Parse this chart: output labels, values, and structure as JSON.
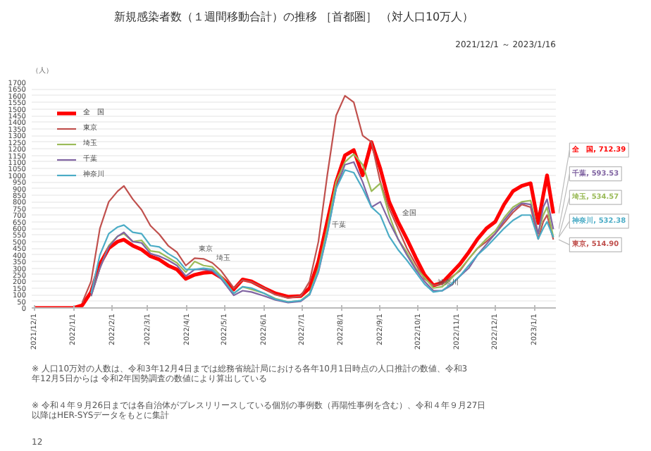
{
  "chart_data": {
    "type": "line",
    "title": "新規感染者数（１週間移動合計）の推移 ［首都圏］ （対人口10万人）",
    "subtitle": "2021/12/1 ～ 2023/1/16",
    "ylabel": "（人）",
    "x": [
      "2021-12-01",
      "2021-12-20",
      "2022-01-01",
      "2022-01-08",
      "2022-01-15",
      "2022-01-22",
      "2022-01-29",
      "2022-02-05",
      "2022-02-10",
      "2022-02-17",
      "2022-02-24",
      "2022-03-03",
      "2022-03-10",
      "2022-03-17",
      "2022-03-24",
      "2022-03-31",
      "2022-04-07",
      "2022-04-14",
      "2022-04-21",
      "2022-04-28",
      "2022-05-08",
      "2022-05-15",
      "2022-05-22",
      "2022-06-01",
      "2022-06-10",
      "2022-06-20",
      "2022-06-30",
      "2022-07-07",
      "2022-07-14",
      "2022-07-21",
      "2022-07-28",
      "2022-08-04",
      "2022-08-11",
      "2022-08-18",
      "2022-08-25",
      "2022-09-01",
      "2022-09-08",
      "2022-09-15",
      "2022-09-22",
      "2022-09-29",
      "2022-10-06",
      "2022-10-13",
      "2022-10-20",
      "2022-10-27",
      "2022-11-03",
      "2022-11-10",
      "2022-11-17",
      "2022-11-24",
      "2022-12-01",
      "2022-12-08",
      "2022-12-15",
      "2022-12-22",
      "2022-12-29",
      "2023-01-04",
      "2023-01-08",
      "2023-01-11",
      "2023-01-16"
    ],
    "series": [
      {
        "name": "全　国",
        "color": "#ff0000",
        "values": [
          0,
          0,
          0,
          20,
          120,
          330,
          450,
          500,
          515,
          470,
          440,
          390,
          365,
          320,
          290,
          220,
          250,
          265,
          270,
          230,
          140,
          215,
          200,
          150,
          110,
          85,
          90,
          150,
          350,
          650,
          950,
          1150,
          1190,
          1000,
          1250,
          1050,
          800,
          650,
          520,
          380,
          250,
          170,
          190,
          260,
          330,
          420,
          520,
          600,
          650,
          780,
          880,
          920,
          940,
          640,
          850,
          1000,
          712.39
        ],
        "value_labels": [
          null,
          null,
          null,
          null,
          null,
          null,
          null,
          null,
          null,
          null,
          null,
          null,
          null,
          null,
          null,
          null,
          null,
          null,
          null,
          null,
          null,
          null,
          null,
          null,
          null,
          null,
          null,
          null,
          null,
          null,
          null,
          null,
          null,
          null,
          null,
          null,
          null,
          null,
          null,
          null,
          null,
          null,
          null,
          null,
          null,
          null,
          null,
          null,
          null,
          null,
          null,
          null,
          null,
          null,
          null,
          null,
          "全　国, 712.39"
        ]
      },
      {
        "name": "東京",
        "color": "#c0504d",
        "values": [
          null,
          null,
          null,
          40,
          200,
          600,
          800,
          880,
          920,
          820,
          740,
          620,
          555,
          470,
          420,
          320,
          375,
          370,
          340,
          280,
          150,
          210,
          195,
          150,
          100,
          75,
          90,
          200,
          500,
          1000,
          1450,
          1600,
          1550,
          1300,
          1250,
          950,
          750,
          600,
          450,
          330,
          220,
          170,
          180,
          230,
          280,
          370,
          450,
          500,
          560,
          640,
          720,
          780,
          760,
          520,
          650,
          700,
          514.9
        ],
        "value_labels": [
          null,
          null,
          null,
          null,
          null,
          null,
          null,
          null,
          null,
          null,
          null,
          null,
          null,
          null,
          null,
          null,
          null,
          null,
          null,
          null,
          null,
          null,
          null,
          null,
          null,
          null,
          null,
          null,
          null,
          null,
          null,
          null,
          null,
          null,
          null,
          null,
          null,
          null,
          null,
          null,
          null,
          null,
          null,
          null,
          null,
          null,
          null,
          null,
          null,
          null,
          null,
          null,
          null,
          null,
          null,
          null,
          "東京, 514.90"
        ]
      },
      {
        "name": "埼玉",
        "color": "#9bbb59",
        "values": [
          null,
          null,
          null,
          null,
          90,
          300,
          470,
          540,
          560,
          500,
          510,
          430,
          420,
          380,
          340,
          270,
          350,
          320,
          310,
          240,
          110,
          160,
          140,
          110,
          70,
          45,
          55,
          110,
          300,
          600,
          950,
          1100,
          1160,
          1080,
          880,
          940,
          700,
          520,
          420,
          300,
          230,
          150,
          160,
          220,
          290,
          370,
          450,
          520,
          580,
          680,
          760,
          800,
          810,
          560,
          700,
          760,
          534.57
        ],
        "value_labels": [
          null,
          null,
          null,
          null,
          null,
          null,
          null,
          null,
          null,
          null,
          null,
          null,
          null,
          null,
          null,
          null,
          null,
          null,
          null,
          null,
          null,
          null,
          null,
          null,
          null,
          null,
          null,
          null,
          null,
          null,
          null,
          null,
          null,
          null,
          null,
          null,
          null,
          null,
          null,
          null,
          null,
          null,
          null,
          null,
          null,
          null,
          null,
          null,
          null,
          null,
          null,
          null,
          null,
          null,
          null,
          null,
          "埼玉, 534.57"
        ]
      },
      {
        "name": "千葉",
        "color": "#8064a2",
        "values": [
          null,
          null,
          null,
          null,
          90,
          300,
          460,
          540,
          570,
          500,
          490,
          410,
          390,
          360,
          320,
          240,
          290,
          290,
          280,
          220,
          95,
          130,
          120,
          90,
          60,
          40,
          50,
          100,
          270,
          560,
          900,
          1080,
          1100,
          950,
          760,
          800,
          650,
          520,
          400,
          290,
          200,
          130,
          130,
          170,
          240,
          300,
          400,
          480,
          560,
          660,
          740,
          790,
          780,
          560,
          760,
          820,
          593.53
        ],
        "value_labels": [
          null,
          null,
          null,
          null,
          null,
          null,
          null,
          null,
          null,
          null,
          null,
          null,
          null,
          null,
          null,
          null,
          null,
          null,
          null,
          null,
          null,
          null,
          null,
          null,
          null,
          null,
          null,
          null,
          null,
          null,
          null,
          null,
          null,
          null,
          null,
          null,
          null,
          null,
          null,
          null,
          null,
          null,
          null,
          null,
          null,
          null,
          null,
          null,
          null,
          null,
          null,
          null,
          null,
          null,
          null,
          null,
          "千葉, 593.53"
        ]
      },
      {
        "name": "神奈川",
        "color": "#4bacc6",
        "values": [
          null,
          null,
          null,
          null,
          110,
          400,
          560,
          610,
          625,
          570,
          560,
          470,
          460,
          410,
          370,
          290,
          290,
          300,
          290,
          230,
          110,
          160,
          150,
          110,
          65,
          45,
          55,
          100,
          280,
          560,
          900,
          1040,
          1020,
          900,
          760,
          700,
          540,
          440,
          360,
          270,
          180,
          120,
          130,
          180,
          240,
          320,
          400,
          460,
          530,
          600,
          660,
          700,
          700,
          520,
          600,
          650,
          532.38
        ],
        "value_labels": [
          null,
          null,
          null,
          null,
          null,
          null,
          null,
          null,
          null,
          null,
          null,
          null,
          null,
          null,
          null,
          null,
          null,
          null,
          null,
          null,
          null,
          null,
          null,
          null,
          null,
          null,
          null,
          null,
          null,
          null,
          null,
          null,
          null,
          null,
          null,
          null,
          null,
          null,
          null,
          null,
          null,
          null,
          null,
          null,
          null,
          null,
          null,
          null,
          null,
          null,
          null,
          null,
          null,
          null,
          null,
          null,
          "神奈川, 532.38"
        ]
      }
    ],
    "xlim": [
      "2021-11-29",
      "2023-01-18"
    ],
    "xticks": [
      {
        "value": "2021-12-01",
        "label": "2021/12/1"
      },
      {
        "value": "2022-01-01",
        "label": "2022/1/1"
      },
      {
        "value": "2022-02-01",
        "label": "2022/2/1"
      },
      {
        "value": "2022-03-01",
        "label": "2022/3/1"
      },
      {
        "value": "2022-04-01",
        "label": "2022/4/1"
      },
      {
        "value": "2022-05-01",
        "label": "2022/5/1"
      },
      {
        "value": "2022-06-01",
        "label": "2022/6/1"
      },
      {
        "value": "2022-07-01",
        "label": "2022/7/1"
      },
      {
        "value": "2022-08-01",
        "label": "2022/8/1"
      },
      {
        "value": "2022-09-01",
        "label": "2022/9/1"
      },
      {
        "value": "2022-10-01",
        "label": "2022/10/1"
      },
      {
        "value": "2022-11-01",
        "label": "2022/11/1"
      },
      {
        "value": "2022-12-01",
        "label": "2022/12/1"
      },
      {
        "value": "2023-01-01",
        "label": "2023/1/1"
      }
    ],
    "ylim": [
      0,
      1700
    ],
    "yticks": [
      0,
      50,
      100,
      150,
      200,
      250,
      300,
      350,
      400,
      450,
      500,
      550,
      600,
      650,
      700,
      750,
      800,
      850,
      900,
      950,
      1000,
      1050,
      1100,
      1150,
      1200,
      1250,
      1300,
      1350,
      1400,
      1450,
      1500,
      1550,
      1600,
      1650,
      1700
    ],
    "grid": "y",
    "legend": "top left",
    "marker": "none",
    "line_style": "solid",
    "annotations": [
      {
        "text": "東京",
        "x": "2022-04-07",
        "y": 375
      },
      {
        "text": "埼玉",
        "x": "2022-04-21",
        "y": 310
      },
      {
        "text": "千葉",
        "x": "2022-07-21",
        "y": 560
      },
      {
        "text": "全国",
        "x": "2022-09-15",
        "y": 650
      },
      {
        "text": "神奈川",
        "x": "2022-10-13",
        "y": 120
      },
      "※ 人口10万対の人数は、令和3年12月4日までは総務省統計局における各年10月1日時点の人口推計の数値、令和3年12月5日からは 令和2年国勢調査の数値により算出している",
      "※ 令和４年９月26日までは各自治体がプレスリリースしている個別の事例数（再陽性事例を含む）、令和４年９月27日以降はHER-SYSデータをもとに集計",
      "12"
    ]
  }
}
